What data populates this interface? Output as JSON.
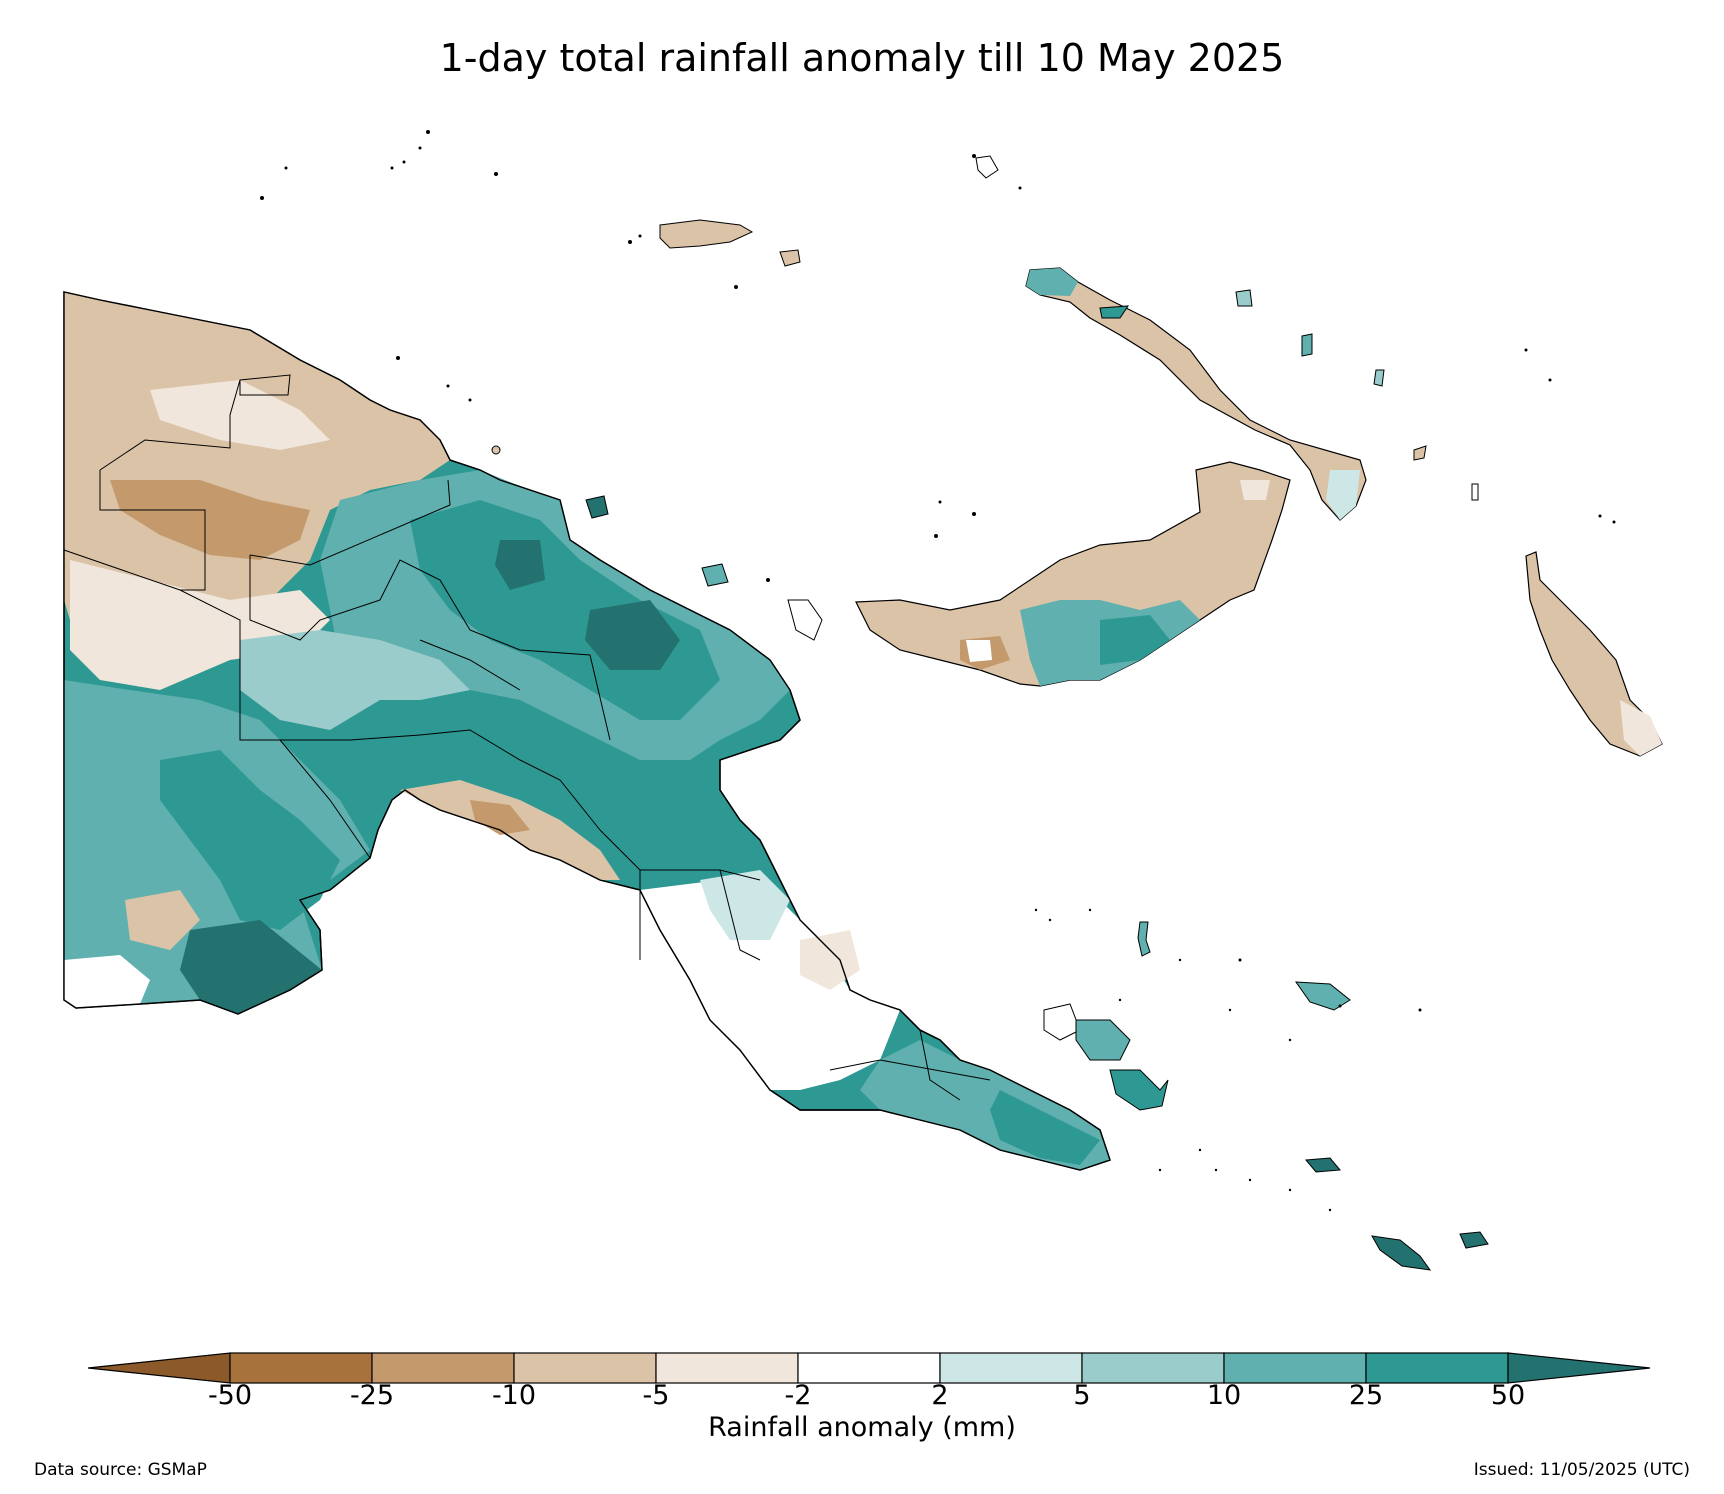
{
  "title": "1-day total rainfall anomaly till 10 May 2025",
  "colorbar": {
    "label": "Rainfall anomaly (mm)",
    "ticks": [
      "-50",
      "-25",
      "-10",
      "-5",
      "-2",
      "2",
      "5",
      "10",
      "25",
      "50"
    ],
    "colors": {
      "below_-50": "#8c5a2a",
      "-50_-25": "#a8723c",
      "-25_-10": "#c49a6c",
      "-10_-5": "#dbc3a8",
      "-5_-2": "#f1e6dc",
      "-2_2": "#ffffff",
      "2_5": "#cde6e6",
      "5_10": "#99cccb",
      "10_25": "#5fb0ae",
      "25_50": "#2e9893",
      "above_50": "#24726f"
    }
  },
  "footer": {
    "source": "Data source: GSMaP",
    "issued": "Issued: 11/05/2025 (UTC)"
  }
}
